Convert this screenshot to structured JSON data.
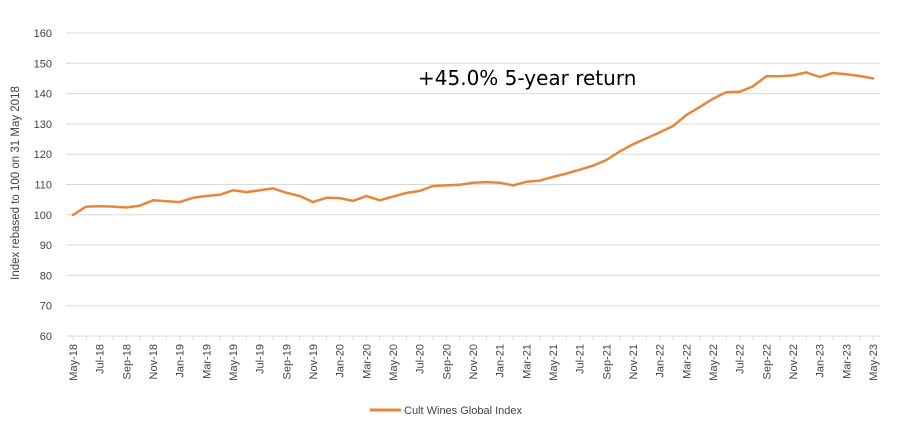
{
  "chart_data": {
    "type": "line",
    "ylabel": "Index rebased to 100 on 31 May 2018",
    "ylim": [
      60,
      160
    ],
    "yticks": [
      "60",
      "70",
      "80",
      "90",
      "100",
      "110",
      "120",
      "130",
      "140",
      "150",
      "160"
    ],
    "grid": "horizontal",
    "legend_position": "bottom",
    "annotation": "+45.0% 5-year return",
    "tick_labels": [
      "May-18",
      "Jul-18",
      "Sep-18",
      "Nov-18",
      "Jan-19",
      "Mar-19",
      "May-19",
      "Jul-19",
      "Sep-19",
      "Nov-19",
      "Jan-20",
      "Mar-20",
      "May-20",
      "Jul-20",
      "Sep-20",
      "Nov-20",
      "Jan-21",
      "Mar-21",
      "May-21",
      "Jul-21",
      "Sep-21",
      "Nov-21",
      "Jan-22",
      "Mar-22",
      "May-22",
      "Jul-22",
      "Sep-22",
      "Nov-22",
      "Jan-23",
      "Mar-23",
      "May-23"
    ],
    "x": [
      "May-18",
      "Jun-18",
      "Jul-18",
      "Aug-18",
      "Sep-18",
      "Oct-18",
      "Nov-18",
      "Dec-18",
      "Jan-19",
      "Feb-19",
      "Mar-19",
      "Apr-19",
      "May-19",
      "Jun-19",
      "Jul-19",
      "Aug-19",
      "Sep-19",
      "Oct-19",
      "Nov-19",
      "Dec-19",
      "Jan-20",
      "Feb-20",
      "Mar-20",
      "Apr-20",
      "May-20",
      "Jun-20",
      "Jul-20",
      "Aug-20",
      "Sep-20",
      "Oct-20",
      "Nov-20",
      "Dec-20",
      "Jan-21",
      "Feb-21",
      "Mar-21",
      "Apr-21",
      "May-21",
      "Jun-21",
      "Jul-21",
      "Aug-21",
      "Sep-21",
      "Oct-21",
      "Nov-21",
      "Dec-21",
      "Jan-22",
      "Feb-22",
      "Mar-22",
      "Apr-22",
      "May-22",
      "Jun-22",
      "Jul-22",
      "Aug-22",
      "Sep-22",
      "Oct-22",
      "Nov-22",
      "Dec-22",
      "Jan-23",
      "Feb-23",
      "Mar-23",
      "Apr-23",
      "May-23"
    ],
    "series": [
      {
        "name": "Cult Wines Global Index",
        "color": "#E8863A",
        "values": [
          100.0,
          102.7,
          102.8,
          102.7,
          102.4,
          103.0,
          104.8,
          104.5,
          104.2,
          105.6,
          106.2,
          106.6,
          108.1,
          107.5,
          108.1,
          108.7,
          107.3,
          106.2,
          104.2,
          105.6,
          105.5,
          104.6,
          106.2,
          104.8,
          106.0,
          107.2,
          107.9,
          109.5,
          109.7,
          109.9,
          110.6,
          110.8,
          110.6,
          109.7,
          110.9,
          111.3,
          112.5,
          113.6,
          114.9,
          116.2,
          118.1,
          120.9,
          123.3,
          125.2,
          127.2,
          129.3,
          132.9,
          135.6,
          138.3,
          140.5,
          140.6,
          142.4,
          145.7,
          145.7,
          146.0,
          147.0,
          145.5,
          146.8,
          146.4,
          145.8,
          145.0
        ]
      }
    ]
  }
}
